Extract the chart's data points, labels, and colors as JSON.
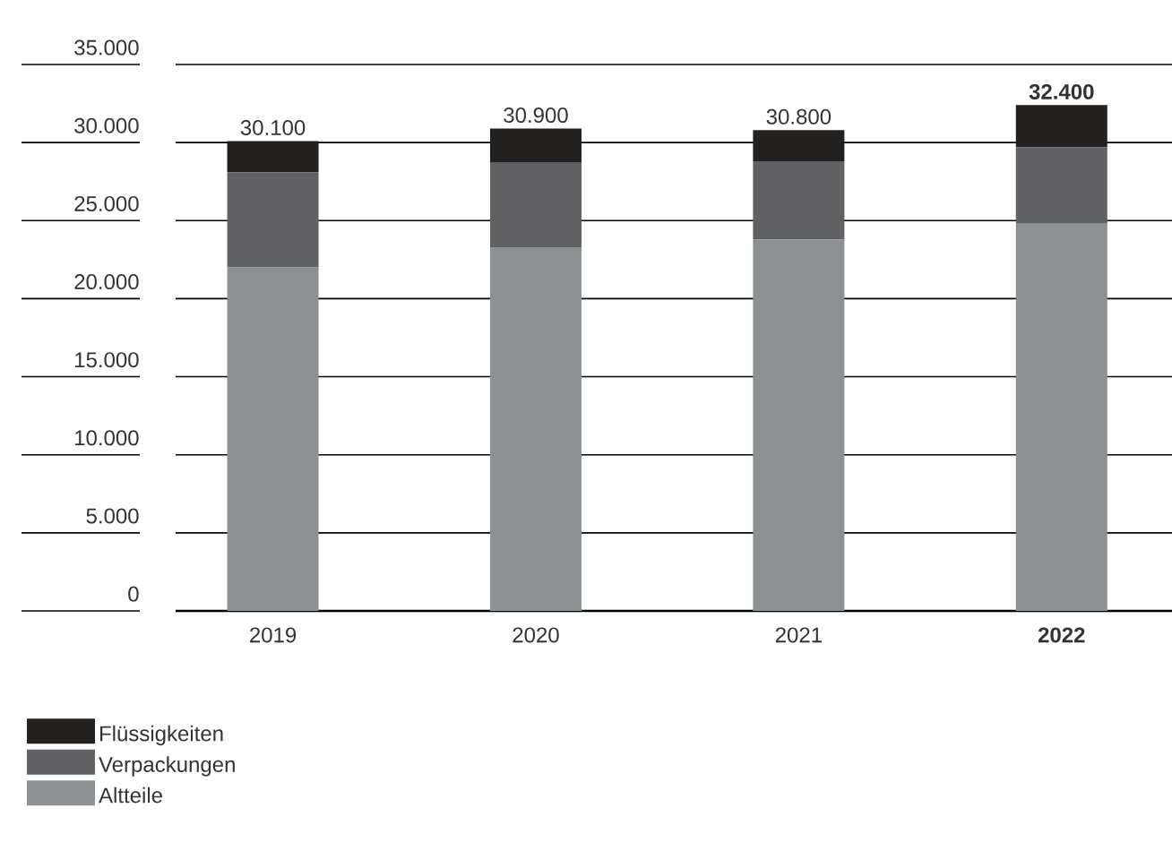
{
  "chart_data": {
    "type": "bar",
    "stacked": true,
    "categories": [
      "2019",
      "2020",
      "2021",
      "**2022**"
    ],
    "series": [
      {
        "name": "Altteile",
        "color": "#8e9194",
        "values": [
          22000,
          23300,
          23800,
          24800
        ]
      },
      {
        "name": "Verpackungen",
        "color": "#616163",
        "values": [
          6100,
          5400,
          5000,
          4900
        ]
      },
      {
        "name": "Flüssigkeiten",
        "color": "#222120",
        "values": [
          2000,
          2200,
          2000,
          2700
        ]
      }
    ],
    "totals": [
      "30.100",
      "30.900",
      "30.800",
      "**32.400**"
    ],
    "ylim": [
      0,
      35000
    ],
    "yticks": [
      {
        "value": 0,
        "label": "0"
      },
      {
        "value": 5000,
        "label": "5.000"
      },
      {
        "value": 10000,
        "label": "10.000"
      },
      {
        "value": 15000,
        "label": "15.000"
      },
      {
        "value": 20000,
        "label": "20.000"
      },
      {
        "value": 25000,
        "label": "25.000"
      },
      {
        "value": 30000,
        "label": "30.000"
      },
      {
        "value": 35000,
        "label": "35.000"
      }
    ],
    "grid": "y",
    "legend": "bottom left"
  }
}
